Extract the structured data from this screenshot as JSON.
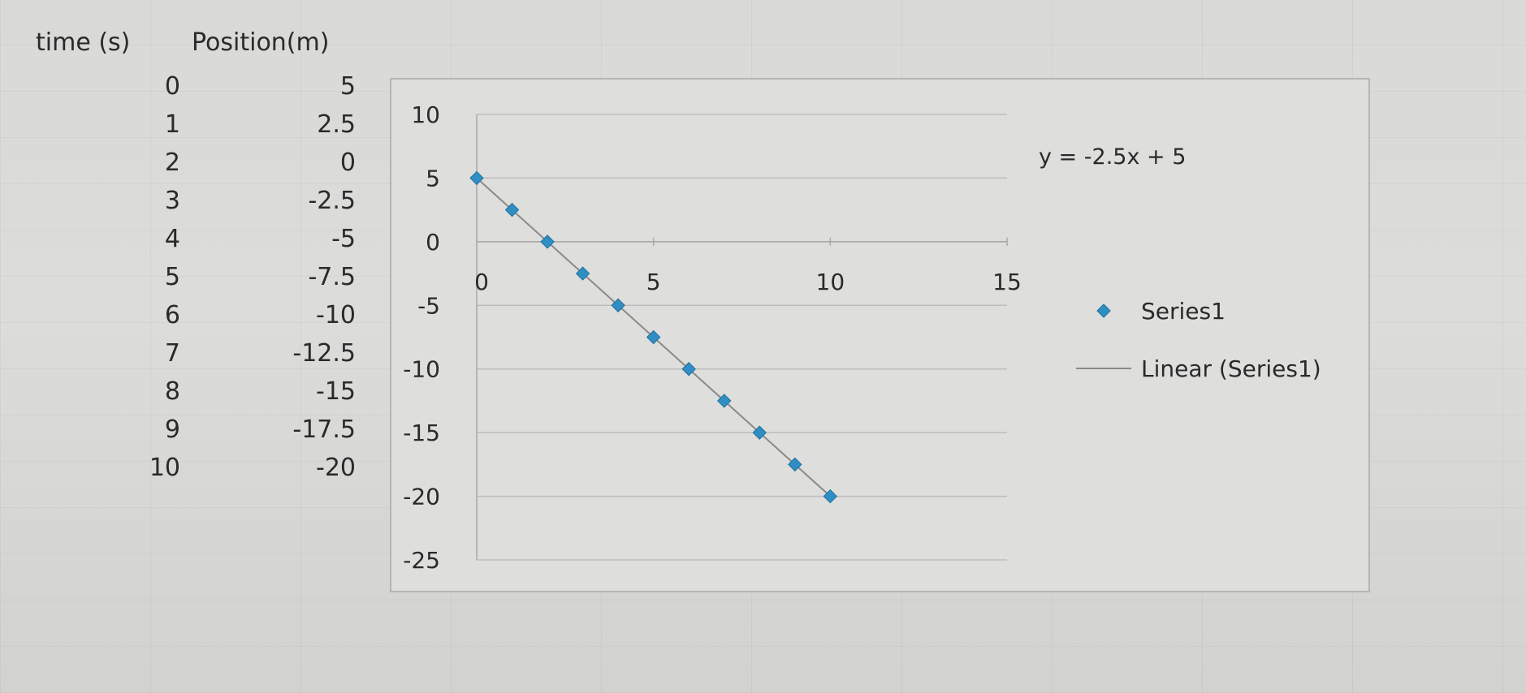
{
  "table": {
    "headers": {
      "time": "time (s)",
      "position": "Position(m)"
    },
    "rows": [
      {
        "time": "0",
        "position": "5"
      },
      {
        "time": "1",
        "position": "2.5"
      },
      {
        "time": "2",
        "position": "0"
      },
      {
        "time": "3",
        "position": "-2.5"
      },
      {
        "time": "4",
        "position": "-5"
      },
      {
        "time": "5",
        "position": "-7.5"
      },
      {
        "time": "6",
        "position": "-10"
      },
      {
        "time": "7",
        "position": "-12.5"
      },
      {
        "time": "8",
        "position": "-15"
      },
      {
        "time": "9",
        "position": "-17.5"
      },
      {
        "time": "10",
        "position": "-20"
      }
    ]
  },
  "chart_data": {
    "type": "scatter",
    "title": "",
    "xlabel": "",
    "ylabel": "",
    "xlim": [
      0,
      15
    ],
    "ylim": [
      -25,
      10
    ],
    "xticks": [
      "0",
      "5",
      "10",
      "15"
    ],
    "yticks": [
      "10",
      "5",
      "0",
      "-5",
      "-10",
      "-15",
      "-20",
      "-25"
    ],
    "x_axis_crosses_at": 0,
    "grid": "horizontal",
    "legend_position": "right",
    "series": [
      {
        "name": "Series1",
        "marker": "diamond",
        "color": "#2f8fc4",
        "x": [
          0,
          1,
          2,
          3,
          4,
          5,
          6,
          7,
          8,
          9,
          10
        ],
        "y": [
          5,
          2.5,
          0,
          -2.5,
          -5,
          -7.5,
          -10,
          -12.5,
          -15,
          -17.5,
          -20
        ]
      }
    ],
    "trendline": {
      "name": "Linear (Series1)",
      "type": "linear",
      "slope": -2.5,
      "intercept": 5,
      "x_range": [
        0,
        10
      ],
      "color": "#8a8a8a"
    },
    "annotation": "y = -2.5x + 5",
    "legend": [
      "Series1",
      "Linear (Series1)"
    ]
  }
}
